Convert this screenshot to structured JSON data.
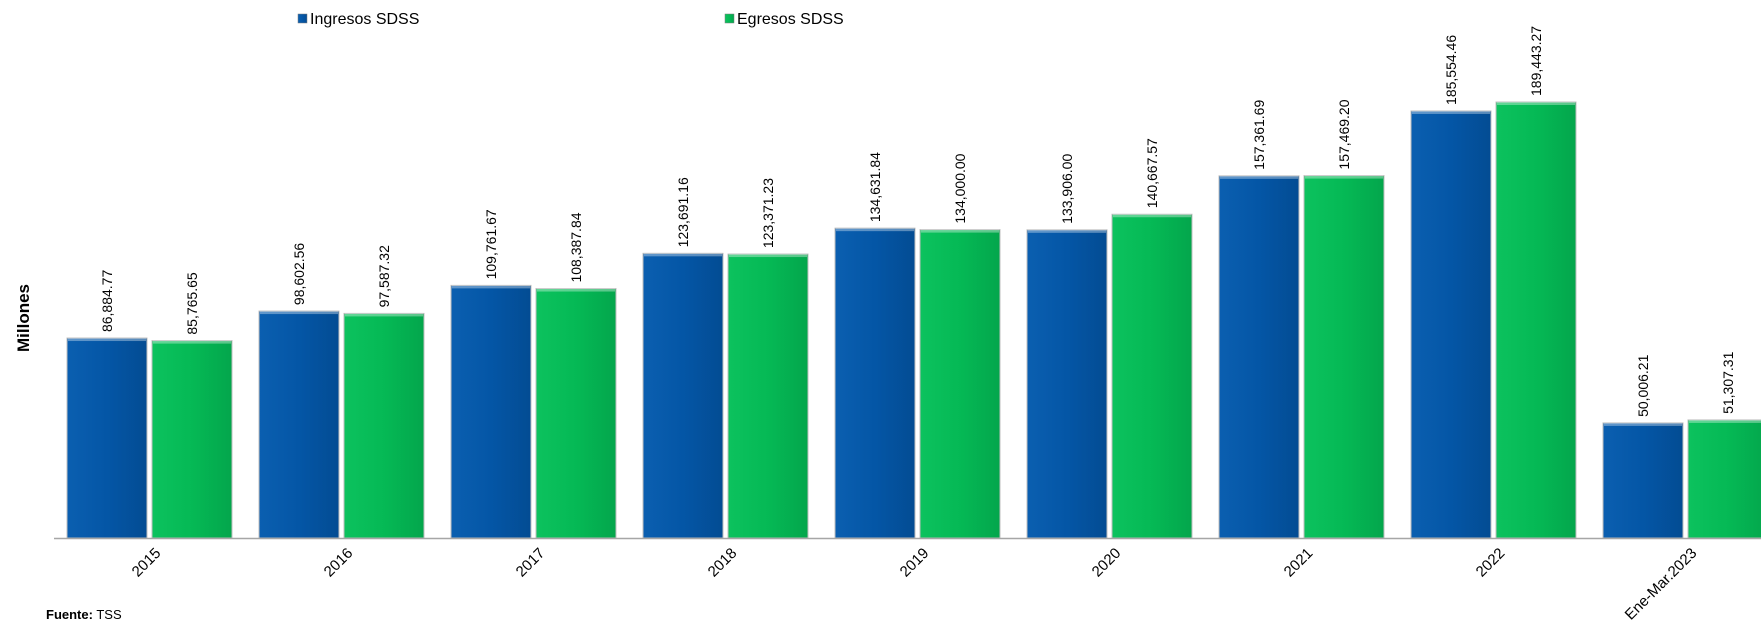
{
  "chart_data": {
    "type": "bar",
    "categories": [
      "2015",
      "2016",
      "2017",
      "2018",
      "2019",
      "2020",
      "2021",
      "2022",
      "Ene-Mar.2023"
    ],
    "series": [
      {
        "name": "Ingresos SDSS",
        "color": "#0456A6",
        "values": [
          86884.77,
          98602.56,
          109761.67,
          123691.16,
          134631.84,
          133906.0,
          157361.69,
          185554.46,
          50006.21
        ],
        "labels": [
          "86,884.77",
          "98,602.56",
          "109,761.67",
          "123,691.16",
          "134,631.84",
          "133,906.00",
          "157,361.69",
          "185,554.46",
          "50,006.21"
        ]
      },
      {
        "name": "Egresos SDSS",
        "color": "#05B955",
        "values": [
          85765.65,
          97587.32,
          108387.84,
          123371.23,
          134000.0,
          140667.57,
          157469.2,
          189443.27,
          51307.31
        ],
        "labels": [
          "85,765.65",
          "97,587.32",
          "108,387.84",
          "123,371.23",
          "134,000.00",
          "140,667.57",
          "157,469.20",
          "189,443.27",
          "51,307.31"
        ]
      }
    ],
    "ylabel": "Millones",
    "legend_position": "top",
    "grid": false
  },
  "source": {
    "label": "Fuente:",
    "value": " TSS"
  }
}
